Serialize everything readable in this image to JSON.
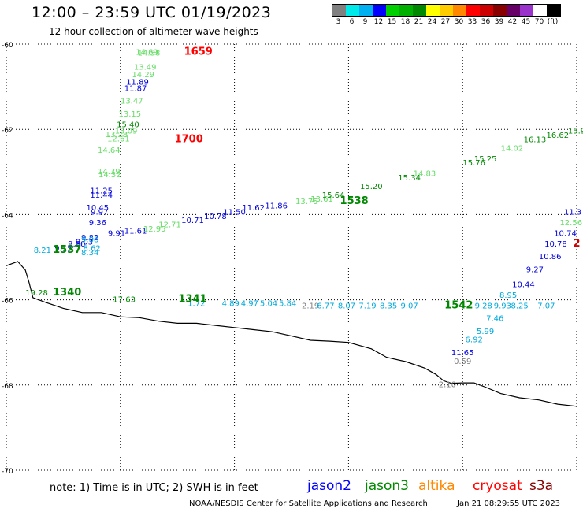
{
  "header": {
    "title": "12:00 – 23:59 UTC 01/19/2023",
    "subtitle": "12 hour collection of altimeter wave heights"
  },
  "colorbar": {
    "colors": [
      "#808080",
      "#00eaea",
      "#00b0f0",
      "#0000ff",
      "#00d000",
      "#00b000",
      "#008800",
      "#ffff00",
      "#ffcc00",
      "#ff8800",
      "#ff0000",
      "#cc0000",
      "#880000",
      "#660066",
      "#9933cc",
      "#ffffff",
      "#000000"
    ],
    "labels": [
      "3",
      "6",
      "9",
      "12",
      "15",
      "18",
      "21",
      "24",
      "27",
      "30",
      "33",
      "36",
      "39",
      "42",
      "45",
      "70",
      "(ft)"
    ]
  },
  "map": {
    "lon_range": [
      135,
      150
    ],
    "lat_range": [
      -70,
      -60
    ],
    "lon_ticks": [
      "135",
      "138",
      "141",
      "144",
      "147",
      "150"
    ],
    "lat_ticks": [
      "-60",
      "-62",
      "-64",
      "-66",
      "-68",
      "-70"
    ],
    "coastline": [
      [
        135,
        -65.2
      ],
      [
        135.3,
        -65.1
      ],
      [
        135.5,
        -65.3
      ],
      [
        135.6,
        -65.6
      ],
      [
        135.7,
        -65.95
      ],
      [
        136,
        -66.05
      ],
      [
        136.5,
        -66.2
      ],
      [
        137,
        -66.3
      ],
      [
        137.5,
        -66.3
      ],
      [
        138,
        -66.4
      ],
      [
        138.5,
        -66.42
      ],
      [
        139,
        -66.5
      ],
      [
        139.5,
        -66.55
      ],
      [
        140,
        -66.55
      ],
      [
        140.5,
        -66.6
      ],
      [
        141,
        -66.65
      ],
      [
        141.5,
        -66.7
      ],
      [
        142,
        -66.75
      ],
      [
        142.5,
        -66.85
      ],
      [
        143,
        -66.95
      ],
      [
        143.5,
        -66.97
      ],
      [
        144,
        -67.0
      ],
      [
        144.6,
        -67.15
      ],
      [
        145.0,
        -67.35
      ],
      [
        145.5,
        -67.45
      ],
      [
        146.0,
        -67.6
      ],
      [
        146.3,
        -67.75
      ],
      [
        146.5,
        -67.9
      ],
      [
        146.7,
        -67.96
      ],
      [
        147,
        -67.95
      ],
      [
        147.3,
        -67.95
      ],
      [
        147.6,
        -68.05
      ],
      [
        148,
        -68.2
      ],
      [
        148.5,
        -68.3
      ],
      [
        149,
        -68.35
      ],
      [
        149.5,
        -68.45
      ],
      [
        150,
        -68.5
      ]
    ],
    "passes": [
      {
        "time": "1659",
        "time_pos": [
          140.05,
          -60.25
        ],
        "color": "#ff0000",
        "labels": [
          [
            "14.69",
            138.7,
            -60.25,
            "#66dd66"
          ],
          [
            "14.58",
            138.75,
            -60.27,
            "#66dd66"
          ],
          [
            "13.49",
            138.65,
            -60.6,
            "#66dd66"
          ],
          [
            "14.29",
            138.6,
            -60.78,
            "#66dd66"
          ],
          [
            "11.89",
            138.45,
            -60.95,
            "#0000dd"
          ],
          [
            "11.87",
            138.4,
            -61.1,
            "#0000dd"
          ],
          [
            "13.47",
            138.3,
            -61.4,
            "#66dd66"
          ],
          [
            "13.15",
            138.25,
            -61.7,
            "#66dd66"
          ],
          [
            "15.40",
            138.2,
            -61.95,
            "#008800"
          ],
          [
            "13.09",
            138.15,
            -62.1,
            "#66dd66"
          ]
        ]
      },
      {
        "time": "1700",
        "time_pos": [
          139.8,
          -62.3
        ],
        "color": "#ff0000",
        "labels": [
          [
            "13.28",
            137.9,
            -62.18,
            "#66dd66"
          ],
          [
            "12.61",
            137.95,
            -62.28,
            "#66dd66"
          ],
          [
            "14.64",
            137.7,
            -62.55,
            "#66dd66"
          ],
          [
            "14.39",
            137.7,
            -63.05,
            "#66dd66"
          ],
          [
            "14.32",
            137.72,
            -63.12,
            "#66dd66"
          ],
          [
            "11.25",
            137.5,
            -63.5,
            "#0000dd"
          ],
          [
            "11.44",
            137.5,
            -63.6,
            "#0000dd"
          ],
          [
            "10.45",
            137.4,
            -63.9,
            "#0000dd"
          ],
          [
            "9.97",
            137.45,
            -64.0,
            "#0000dd"
          ]
        ]
      },
      {
        "time": "1538",
        "time_pos": [
          144.15,
          -63.75
        ],
        "color": "#008800",
        "labels": [
          [
            "9.36",
            137.4,
            -64.25,
            "#0000dd"
          ],
          [
            "9.82",
            137.2,
            -64.6,
            "#0000dd"
          ],
          [
            "9.91",
            137.9,
            -64.5,
            "#0000dd"
          ],
          [
            "11.61",
            138.4,
            -64.45,
            "#0000dd"
          ],
          [
            "12.95",
            138.9,
            -64.4,
            "#66dd66"
          ],
          [
            "12.71",
            139.3,
            -64.3,
            "#66dd66"
          ],
          [
            "10.71",
            139.9,
            -64.2,
            "#0000dd"
          ],
          [
            "10.78",
            140.5,
            -64.1,
            "#0000dd"
          ],
          [
            "11.50",
            141.0,
            -64.0,
            "#0000dd"
          ],
          [
            "11.62",
            141.5,
            -63.9,
            "#0000dd"
          ],
          [
            "11.86",
            142.1,
            -63.85,
            "#0000dd"
          ],
          [
            "13.75",
            142.9,
            -63.75,
            "#66dd66"
          ],
          [
            "13.61",
            143.3,
            -63.7,
            "#66dd66"
          ],
          [
            "15.64",
            143.6,
            -63.6,
            "#008800"
          ],
          [
            "15.20",
            144.6,
            -63.4,
            "#008800"
          ],
          [
            "15.34",
            145.6,
            -63.2,
            "#008800"
          ],
          [
            "14.83",
            146.0,
            -63.1,
            "#66dd66"
          ],
          [
            "15.76",
            147.3,
            -62.85,
            "#008800"
          ],
          [
            "15.25",
            147.6,
            -62.75,
            "#008800"
          ],
          [
            "14.02",
            148.3,
            -62.5,
            "#66dd66"
          ],
          [
            "16.13",
            148.9,
            -62.3,
            "#008800"
          ],
          [
            "16.62",
            149.5,
            -62.2,
            "#008800"
          ],
          [
            "15.9",
            150.0,
            -62.1,
            "#008800"
          ]
        ]
      },
      {
        "time": "1537",
        "time_pos": [
          136.6,
          -64.9
        ],
        "color": "#008800",
        "labels": [
          [
            "8.21",
            135.95,
            -64.9,
            "#00aadd"
          ],
          [
            "9.15",
            136.5,
            -64.85,
            "#0000dd"
          ],
          [
            "9.80",
            136.85,
            -64.75,
            "#0000dd"
          ],
          [
            "9.03",
            137.05,
            -64.7,
            "#0000dd"
          ],
          [
            "9.08",
            137.2,
            -64.65,
            "#00aadd"
          ],
          [
            "8.62",
            137.25,
            -64.85,
            "#00aadd"
          ],
          [
            "8.34",
            137.2,
            -64.95,
            "#00aadd"
          ]
        ]
      },
      {
        "time": "1340",
        "time_pos": [
          136.6,
          -65.9
        ],
        "color": "#008800",
        "labels": [
          [
            "19.28",
            135.8,
            -65.9,
            "#008800"
          ]
        ]
      },
      {
        "time": "1341",
        "time_pos": [
          139.9,
          -66.05
        ],
        "color": "#008800",
        "labels": [
          [
            "17.63",
            138.1,
            -66.05,
            "#008800"
          ],
          [
            "1.72",
            140.0,
            -66.15,
            "#00aadd"
          ],
          [
            "4.89",
            140.9,
            -66.15,
            "#00aadd"
          ],
          [
            "4.97",
            141.4,
            -66.15,
            "#00aadd"
          ],
          [
            "5.04",
            141.9,
            -66.15,
            "#00aadd"
          ],
          [
            "5.84",
            142.4,
            -66.15,
            "#00aadd"
          ],
          [
            "2.19",
            143.0,
            -66.2,
            "#808080"
          ]
        ]
      },
      {
        "time": "1542",
        "time_pos": [
          146.9,
          -66.2
        ],
        "color": "#008800",
        "labels": [
          [
            "6.77",
            143.4,
            -66.2,
            "#00aadd"
          ],
          [
            "8.07",
            143.95,
            -66.2,
            "#00aadd"
          ],
          [
            "7.19",
            144.5,
            -66.2,
            "#00aadd"
          ],
          [
            "8.35",
            145.05,
            -66.2,
            "#00aadd"
          ],
          [
            "9.07",
            145.6,
            -66.2,
            "#00aadd"
          ],
          [
            "9.28",
            147.55,
            -66.2,
            "#00aadd"
          ],
          [
            "9.93",
            148.05,
            -66.2,
            "#00aadd"
          ],
          [
            "8.25",
            148.5,
            -66.2,
            "#00aadd"
          ],
          [
            "7.07",
            149.2,
            -66.2,
            "#00aadd"
          ],
          [
            "7.46",
            147.85,
            -66.5,
            "#00aadd"
          ],
          [
            "5.99",
            147.6,
            -66.8,
            "#00aadd"
          ],
          [
            "6.92",
            147.3,
            -67.0,
            "#00aadd"
          ],
          [
            "11.65",
            147.0,
            -67.3,
            "#0000dd"
          ],
          [
            "0.59",
            147.0,
            -67.5,
            "#808080"
          ],
          [
            "2.10",
            146.6,
            -68.05,
            "#808080"
          ],
          [
            "8.95",
            148.2,
            -65.95,
            "#00aadd"
          ],
          [
            "10.44",
            148.6,
            -65.7,
            "#0000dd"
          ],
          [
            "9.27",
            148.9,
            -65.35,
            "#0000dd"
          ],
          [
            "10.86",
            149.3,
            -65.05,
            "#0000dd"
          ],
          [
            "10.78",
            149.45,
            -64.75,
            "#0000dd"
          ],
          [
            "10.74",
            149.7,
            -64.5,
            "#0000dd"
          ],
          [
            "12.56",
            149.85,
            -64.25,
            "#66dd66"
          ],
          [
            "11.3",
            149.9,
            -64.0,
            "#0000dd"
          ]
        ]
      },
      {
        "time": "2",
        "time_pos": [
          150.0,
          -64.75
        ],
        "color": "#cc0000",
        "labels": []
      }
    ]
  },
  "footer": {
    "note": "note:  1) Time is in UTC;  2) SWH is in feet",
    "legend": [
      {
        "name": "jason2",
        "color": "#0000ff"
      },
      {
        "name": "jason3",
        "color": "#008800"
      },
      {
        "name": "altika",
        "color": "#ff8800"
      },
      {
        "name": "cryosat",
        "color": "#ff0000"
      },
      {
        "name": "s3a",
        "color": "#880000"
      }
    ],
    "credit": "NOAA/NESDIS Center for Satellite Applications and Research",
    "date": "Jan 21 08:29:55 UTC 2023"
  }
}
